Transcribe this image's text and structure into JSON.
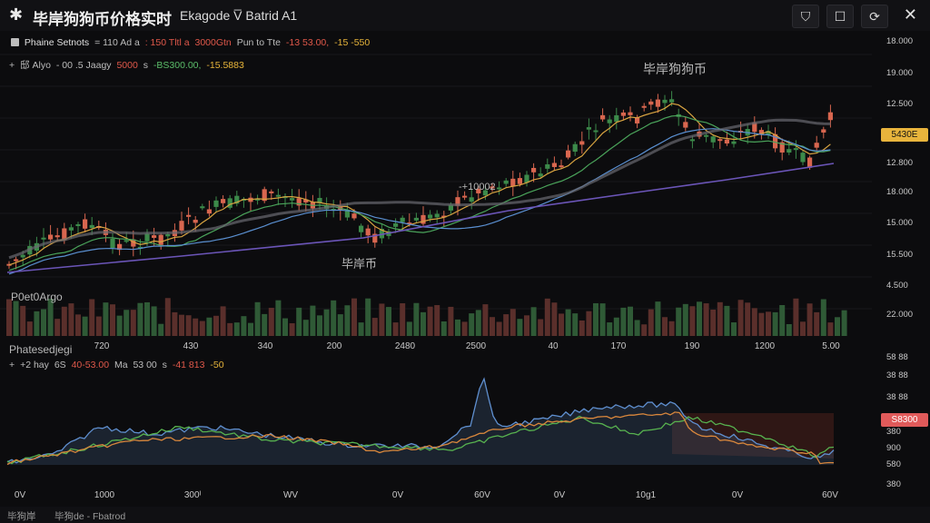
{
  "header": {
    "title": "毕岸狗狗币价格实时",
    "subtitle": "Ekagode V̅ Batrid A1",
    "logo_icon": "asterisk-icon",
    "buttons": [
      {
        "name": "shield-button",
        "icon": "shield-icon",
        "glyph": "⛉"
      },
      {
        "name": "comment-button",
        "icon": "comment-icon",
        "glyph": "☐"
      },
      {
        "name": "refresh-button",
        "icon": "refresh-icon",
        "glyph": "⟳"
      }
    ],
    "close_glyph": "✕"
  },
  "legend1": {
    "name": "Phaine Setnots",
    "t1": "= 110 Ad a",
    "t2": ": 150 Tltl a",
    "t3": "3000Gtn",
    "t4": "Pun to Tte",
    "t5": "-13 53.00,",
    "t6": "-15 -550"
  },
  "legend2": {
    "prefix": "+",
    "t1": "邸 Alyo",
    "t2": "- 00 .5 Jaagy",
    "t3": "5000",
    "t4": "s",
    "t5": "-BS300.00,",
    "t6": "-15.5883"
  },
  "main_chart": {
    "annotation_top": "毕岸狗狗币",
    "annotation_mid": "-+10002",
    "annotation_bottom": "毕岸币",
    "price_axis": [
      "18.000",
      "19.000",
      "12.500",
      "12.800",
      "18.000",
      "15.000",
      "15.500",
      "4.500",
      "22.000"
    ],
    "price_tag": "5430E",
    "price_tag_color": "#e8b43c",
    "up_color": "#3c8a4a",
    "down_color": "#d8664f"
  },
  "volume_panel": {
    "label": "P0et0Argo",
    "xaxis": [
      "720",
      "430",
      "340",
      "200",
      "2480",
      "2500",
      "40",
      "170",
      "190",
      "1200",
      "5.00"
    ]
  },
  "indicator_panel": {
    "label": "Phatesedjegi",
    "legend_prefix": "+",
    "t1": "+2 hay",
    "t2": "6S",
    "t3": "40-53.00",
    "t4": "Ma",
    "t5": "53 00",
    "t6": "s",
    "t7": "-41 813",
    "t8": "-50",
    "axis": [
      "58 88",
      "38 88",
      "38 88",
      "38 88",
      "380",
      "900",
      "580",
      "380"
    ],
    "tag": "S8300",
    "tag_color": "#e05a5a",
    "xaxis": [
      "0V",
      "1000",
      "300ᴵ",
      "WV",
      "0V",
      "60V",
      "0V",
      "10g1",
      "0V",
      "60V"
    ]
  },
  "status": {
    "left": "毕狗岸",
    "right": "毕狗de - Fbatrod"
  }
}
